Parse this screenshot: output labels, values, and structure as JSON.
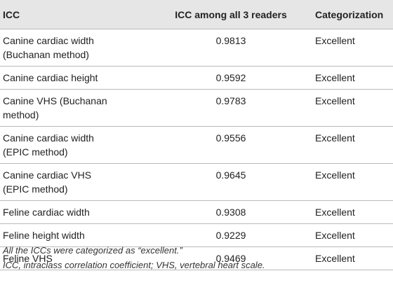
{
  "table": {
    "headers": [
      "ICC",
      "ICC among all 3 readers",
      "Categorization"
    ],
    "rows": [
      {
        "label_line1": "Canine cardiac width",
        "label_line2": "(Buchanan method)",
        "icc": "0.9813",
        "category": "Excellent"
      },
      {
        "label_line1": "Canine cardiac height",
        "label_line2": "",
        "icc": "0.9592",
        "category": "Excellent"
      },
      {
        "label_line1": "Canine VHS (Buchanan",
        "label_line2": "method)",
        "icc": "0.9783",
        "category": "Excellent"
      },
      {
        "label_line1": "Canine cardiac width",
        "label_line2": "(EPIC method)",
        "icc": "0.9556",
        "category": "Excellent"
      },
      {
        "label_line1": "Canine cardiac VHS",
        "label_line2": "(EPIC method)",
        "icc": "0.9645",
        "category": "Excellent"
      },
      {
        "label_line1": "Feline cardiac width",
        "label_line2": "",
        "icc": "0.9308",
        "category": "Excellent"
      },
      {
        "label_line1": "Feline height width",
        "label_line2": "",
        "icc": "0.9229",
        "category": "Excellent"
      },
      {
        "label_line1": "Feline VHS",
        "label_line2": "",
        "icc": "0.9469",
        "category": "Excellent"
      }
    ]
  },
  "footnotes": {
    "note1": "All the ICCs were categorized as “excellent.”",
    "note2": "ICC, intraclass correlation coefficient; VHS, vertebral heart scale."
  },
  "colors": {
    "header_background": "#e6e6e6",
    "rule": "#b9b9b9",
    "text": "#222222"
  }
}
